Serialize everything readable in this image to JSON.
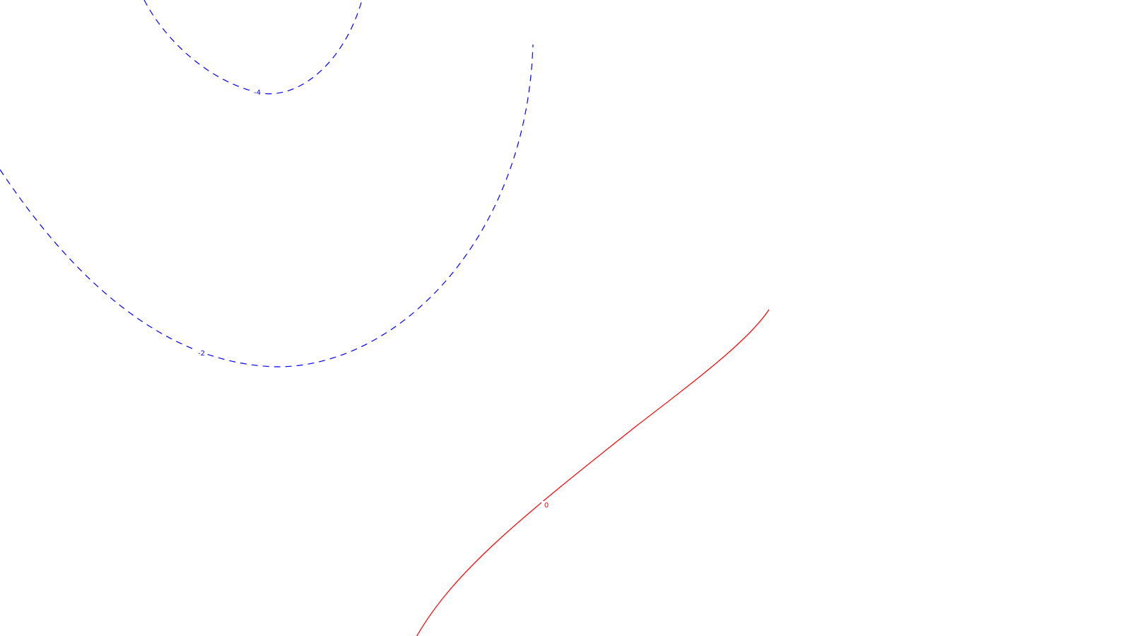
{
  "chart_data": {
    "type": "contour",
    "colors": {
      "negative": "#0000ff",
      "zero": "#ff0000"
    },
    "levels": [
      {
        "value": -4,
        "label": "-4",
        "style": "dashed",
        "color": "#0000ff"
      },
      {
        "value": -2,
        "label": "-2",
        "style": "dashed",
        "color": "#0000ff"
      },
      {
        "value": 0,
        "label": "0",
        "style": "solid",
        "color": "#ff0000"
      }
    ]
  }
}
